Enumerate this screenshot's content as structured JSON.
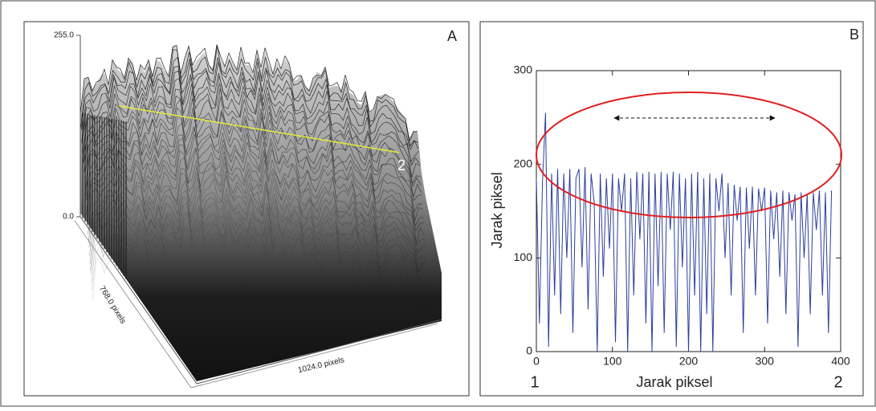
{
  "chart_data": [
    {
      "type": "surface3d",
      "title": "A",
      "zlim": [
        0,
        255
      ],
      "zticks": [
        {
          "value": 0,
          "label": "0.0"
        },
        {
          "value": 255,
          "label": "255.0"
        }
      ],
      "xlabel": "1024.0 pixels",
      "ylabel": "768.0 pixels",
      "annotations": [
        "2"
      ]
    },
    {
      "type": "line",
      "title": "B",
      "xlabel": "Jarak piksel",
      "ylabel": "Jarak piksel",
      "xlim": [
        0,
        400
      ],
      "ylim": [
        0,
        300
      ],
      "xticks": [
        0,
        100,
        200,
        300,
        400
      ],
      "yticks": [
        0,
        100,
        200,
        300
      ],
      "color": "#2c3e9c",
      "annotations": [
        "1",
        "2"
      ],
      "x": [
        0,
        4,
        8,
        12,
        16,
        20,
        24,
        28,
        32,
        36,
        40,
        44,
        48,
        52,
        56,
        60,
        64,
        68,
        72,
        76,
        80,
        84,
        88,
        92,
        96,
        100,
        104,
        108,
        112,
        116,
        120,
        124,
        128,
        132,
        136,
        140,
        144,
        148,
        152,
        156,
        160,
        164,
        168,
        172,
        176,
        180,
        184,
        188,
        192,
        196,
        200,
        204,
        208,
        212,
        216,
        220,
        224,
        228,
        232,
        236,
        240,
        244,
        248,
        252,
        256,
        260,
        264,
        268,
        272,
        276,
        280,
        284,
        288,
        292,
        296,
        300,
        304,
        308,
        312,
        316,
        320,
        324,
        328,
        332,
        336,
        340,
        344,
        348,
        352,
        356,
        360,
        364,
        368,
        372,
        376,
        380,
        384,
        388
      ],
      "values": [
        185,
        30,
        180,
        255,
        5,
        190,
        60,
        195,
        40,
        190,
        100,
        195,
        20,
        185,
        195,
        90,
        197,
        45,
        190,
        160,
        0,
        190,
        80,
        185,
        110,
        190,
        10,
        185,
        150,
        190,
        0,
        185,
        60,
        192,
        120,
        190,
        30,
        192,
        0,
        190,
        70,
        192,
        20,
        190,
        130,
        192,
        5,
        190,
        90,
        185,
        0,
        190,
        60,
        192,
        0,
        185,
        40,
        190,
        0,
        185,
        150,
        190,
        100,
        180,
        60,
        178,
        140,
        176,
        20,
        175,
        110,
        176,
        60,
        174,
        150,
        175,
        30,
        172,
        120,
        170,
        80,
        172,
        40,
        170,
        140,
        168,
        5,
        170,
        100,
        168,
        40,
        170,
        130,
        172,
        60,
        170,
        20,
        172
      ]
    }
  ]
}
